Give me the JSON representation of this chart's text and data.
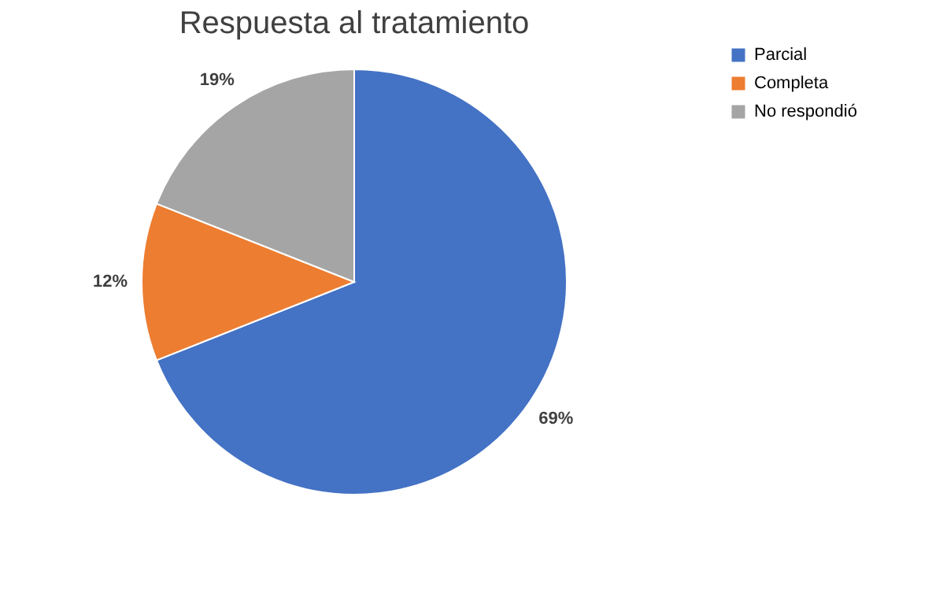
{
  "chart_data": {
    "type": "pie",
    "title": "Respuesta al tratamiento",
    "categories": [
      "Parcial",
      "Completa",
      "No respondió"
    ],
    "values": [
      69,
      12,
      19
    ],
    "colors": [
      "#4472c4",
      "#ed7d31",
      "#a5a5a5"
    ],
    "value_labels": [
      "69%",
      "12%",
      "19%"
    ],
    "legend": "right"
  }
}
